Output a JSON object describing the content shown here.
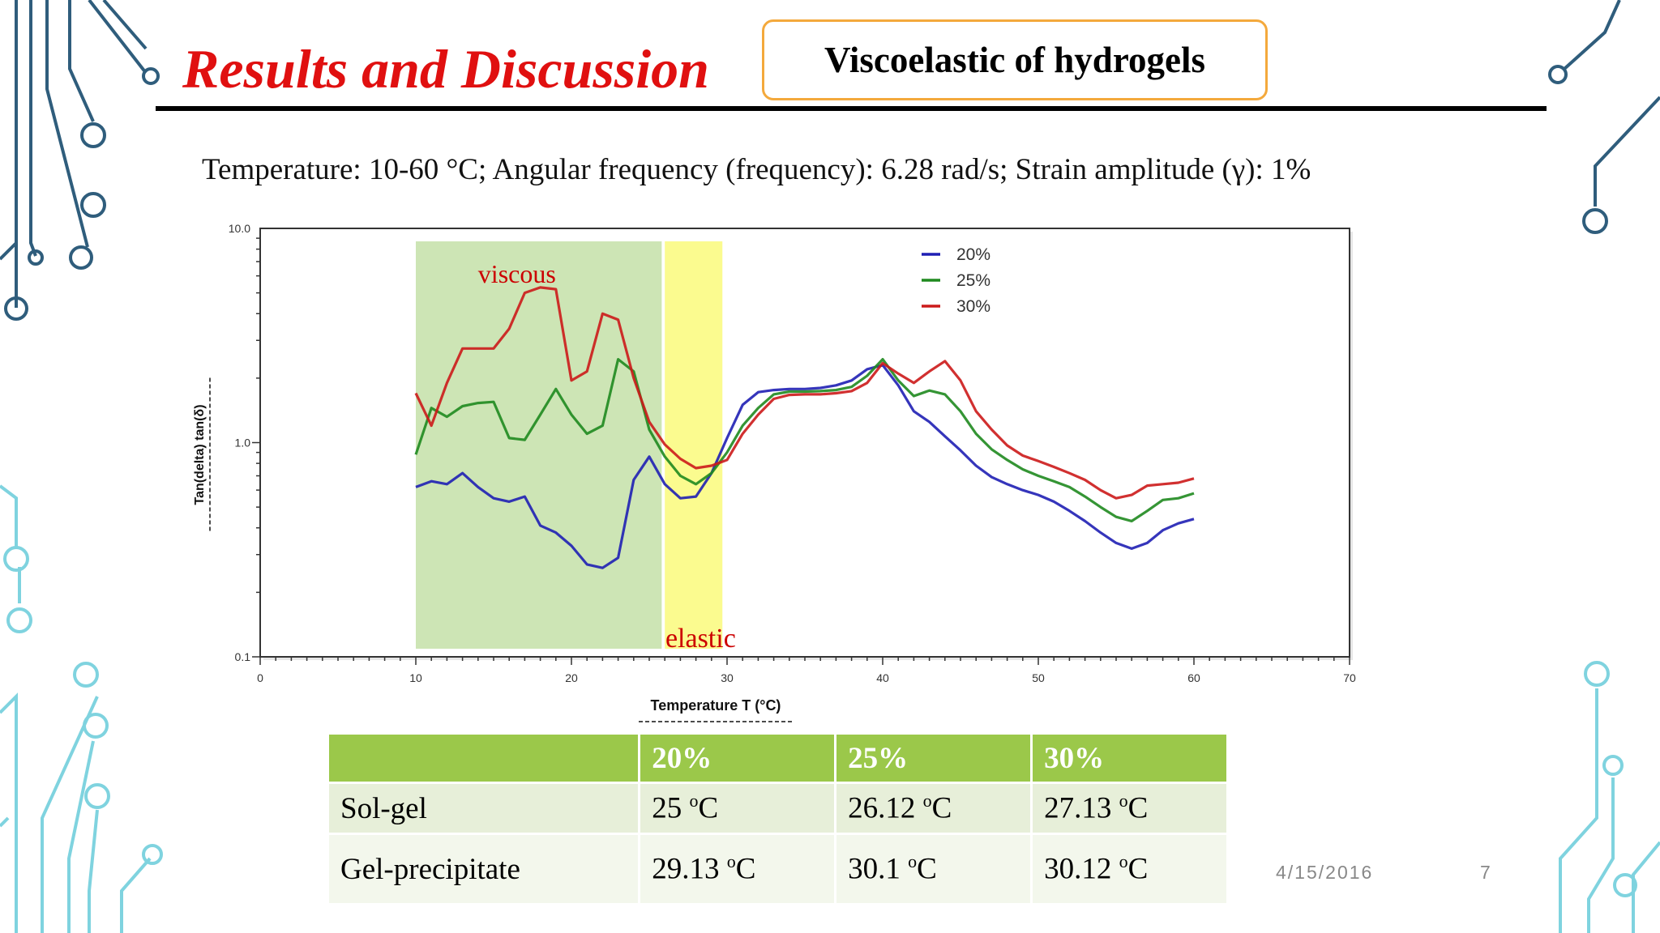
{
  "slide": {
    "title": "Results and Discussion",
    "badge": "Viscoelastic of hydrogels",
    "params": "Temperature: 10-60 °C; Angular frequency (frequency): 6.28 rad/s; Strain amplitude (γ): 1%",
    "date": "4/15/2016",
    "page_number": "7"
  },
  "chart_data": {
    "type": "line",
    "xlabel": "Temperature T (°C)",
    "ylabel": "Tan(delta) tan(δ)",
    "xlim": [
      0,
      70
    ],
    "ylim": [
      0.1,
      10.0
    ],
    "yscale": "log",
    "x_ticks": [
      "0",
      "10",
      "20",
      "30",
      "40",
      "50",
      "60",
      "70"
    ],
    "y_ticks": [
      "0.1",
      "1.0",
      "10.0"
    ],
    "legend_position": "top-center",
    "annotations": [
      {
        "text": "viscous",
        "x_range": [
          10,
          25.8
        ],
        "color": "#cc0000",
        "fill": "#cde5b5"
      },
      {
        "text": "elastic",
        "x_range": [
          26,
          29.7
        ],
        "color": "#cc0000",
        "fill": "#fbfb8f"
      }
    ],
    "series": [
      {
        "name": "20%",
        "color": "#1f1fb4",
        "x": [
          10,
          11,
          12,
          13,
          14,
          15,
          16,
          17,
          18,
          19,
          20,
          21,
          22,
          23,
          24,
          25,
          26,
          27,
          28,
          29,
          30,
          31,
          32,
          33,
          34,
          35,
          36,
          37,
          38,
          39,
          40,
          41,
          42,
          43,
          44,
          45,
          46,
          47,
          48,
          49,
          50,
          51,
          52,
          53,
          54,
          55,
          56,
          57,
          58,
          59,
          60
        ],
        "y": [
          0.62,
          0.66,
          0.64,
          0.72,
          0.62,
          0.55,
          0.53,
          0.56,
          0.41,
          0.38,
          0.33,
          0.27,
          0.26,
          0.29,
          0.67,
          0.86,
          0.64,
          0.55,
          0.56,
          0.72,
          1.05,
          1.5,
          1.72,
          1.76,
          1.78,
          1.78,
          1.8,
          1.85,
          1.95,
          2.2,
          2.3,
          1.85,
          1.4,
          1.25,
          1.07,
          0.92,
          0.78,
          0.69,
          0.64,
          0.6,
          0.57,
          0.53,
          0.48,
          0.43,
          0.38,
          0.34,
          0.32,
          0.34,
          0.39,
          0.42,
          0.44
        ]
      },
      {
        "name": "25%",
        "color": "#1f8a1f",
        "x": [
          10,
          11,
          12,
          13,
          14,
          15,
          16,
          17,
          18,
          19,
          20,
          21,
          22,
          23,
          24,
          25,
          26,
          27,
          28,
          29,
          30,
          31,
          32,
          33,
          34,
          35,
          36,
          37,
          38,
          39,
          40,
          41,
          42,
          43,
          44,
          45,
          46,
          47,
          48,
          49,
          50,
          51,
          52,
          53,
          54,
          55,
          56,
          57,
          58,
          59,
          60
        ],
        "y": [
          0.88,
          1.45,
          1.32,
          1.48,
          1.53,
          1.55,
          1.05,
          1.03,
          1.35,
          1.78,
          1.35,
          1.1,
          1.2,
          2.45,
          2.15,
          1.15,
          0.86,
          0.7,
          0.64,
          0.72,
          0.9,
          1.2,
          1.45,
          1.68,
          1.73,
          1.73,
          1.74,
          1.76,
          1.82,
          2.05,
          2.45,
          1.95,
          1.65,
          1.75,
          1.68,
          1.4,
          1.1,
          0.93,
          0.83,
          0.75,
          0.7,
          0.66,
          0.62,
          0.56,
          0.5,
          0.45,
          0.43,
          0.48,
          0.54,
          0.55,
          0.58
        ]
      },
      {
        "name": "30%",
        "color": "#cc1a1a",
        "x": [
          10,
          11,
          12,
          13,
          14,
          15,
          16,
          17,
          18,
          19,
          20,
          21,
          22,
          23,
          24,
          25,
          26,
          27,
          28,
          29,
          30,
          31,
          32,
          33,
          34,
          35,
          36,
          37,
          38,
          39,
          40,
          41,
          42,
          43,
          44,
          45,
          46,
          47,
          48,
          49,
          50,
          51,
          52,
          53,
          54,
          55,
          56,
          57,
          58,
          59,
          60
        ],
        "y": [
          1.7,
          1.2,
          1.9,
          2.75,
          2.75,
          2.75,
          3.4,
          5.0,
          5.3,
          5.2,
          1.95,
          2.15,
          4.0,
          3.75,
          2.0,
          1.25,
          0.98,
          0.84,
          0.76,
          0.78,
          0.83,
          1.1,
          1.35,
          1.6,
          1.67,
          1.68,
          1.68,
          1.7,
          1.74,
          1.9,
          2.35,
          2.1,
          1.9,
          2.15,
          2.4,
          1.95,
          1.4,
          1.15,
          0.97,
          0.87,
          0.82,
          0.77,
          0.72,
          0.67,
          0.6,
          0.55,
          0.57,
          0.63,
          0.64,
          0.65,
          0.68
        ]
      }
    ]
  },
  "table": {
    "headers": [
      "",
      "20%",
      "25%",
      "30%"
    ],
    "rows": [
      {
        "label": "Sol-gel",
        "cells": [
          {
            "val": "25 ",
            "sup": "o",
            "unit": "C"
          },
          {
            "val": "26.12 ",
            "sup": "o",
            "unit": "C"
          },
          {
            "val": "27.13 ",
            "sup": "o",
            "unit": "C"
          }
        ]
      },
      {
        "label": "Gel-precipitate",
        "cells": [
          {
            "val": "29.13 ",
            "sup": "o",
            "unit": "C"
          },
          {
            "val": "30.1 ",
            "sup": "o",
            "unit": "C"
          },
          {
            "val": "30.12 ",
            "sup": "o",
            "unit": "C"
          }
        ]
      }
    ]
  }
}
